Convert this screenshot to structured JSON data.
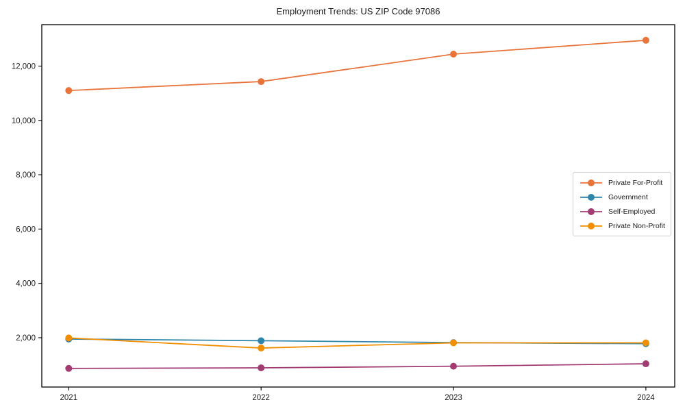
{
  "figure": {
    "title": "Employment Trends: US ZIP Code 97086"
  },
  "chart_data": {
    "type": "line",
    "title": "Employment Trends: US ZIP Code 97086",
    "xlabel": "",
    "ylabel": "",
    "categories": [
      "2021",
      "2022",
      "2023",
      "2024"
    ],
    "x": [
      2021,
      2022,
      2023,
      2024
    ],
    "series": [
      {
        "name": "Private For-Profit",
        "color": "#E8743B",
        "values": [
          11100,
          11430,
          12440,
          12950
        ]
      },
      {
        "name": "Government",
        "color": "#2E86AB",
        "values": [
          1950,
          1890,
          1820,
          1780
        ]
      },
      {
        "name": "Self-Employed",
        "color": "#A23B72",
        "values": [
          870,
          890,
          950,
          1040
        ]
      },
      {
        "name": "Private Non-Profit",
        "color": "#F18F01",
        "values": [
          1990,
          1620,
          1810,
          1810
        ]
      }
    ],
    "yticks": [
      2000,
      4000,
      6000,
      8000,
      10000,
      12000
    ],
    "ytick_labels": [
      "2,000",
      "4,000",
      "6,000",
      "8,000",
      "10,000",
      "12,000"
    ],
    "xlim": [
      2020.86,
      2024.15
    ],
    "ylim": [
      184,
      13525
    ],
    "grid": false,
    "legend_position": "center right",
    "marker": "circle",
    "line_width": 1.8,
    "marker_radius": 5
  }
}
